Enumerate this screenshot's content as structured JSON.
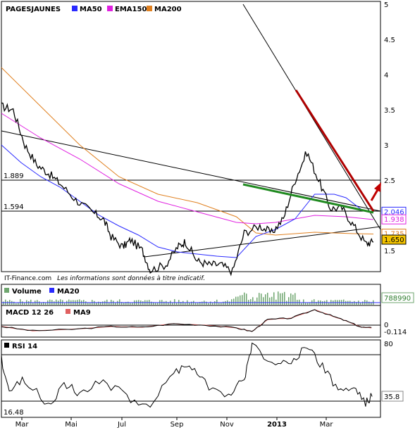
{
  "chart_data": [
    {
      "type": "line",
      "panel": "price",
      "title": "PAGESJAUNES",
      "legend": [
        "MA50",
        "EMA150",
        "MA200"
      ],
      "colors": {
        "price": "#000000",
        "ma50": "#2a2aff",
        "ema150": "#e020e0",
        "ma200": "#e08020",
        "resistance": "#b00000",
        "channel": "#208a20",
        "arrow": "#c00000"
      },
      "y_ticks": [
        5,
        4.5,
        4,
        3.5,
        3,
        2.5,
        2,
        1.5
      ],
      "ylim": [
        1.2,
        5
      ],
      "x_ticks": [
        "Mar",
        "Mai",
        "Jul",
        "Sep",
        "Nov",
        "2013",
        "Mar"
      ],
      "levels": [
        {
          "label": "1.889",
          "value": 1.889
        },
        {
          "label": "1.594",
          "value": 1.594
        }
      ],
      "value_tags": [
        {
          "label": "2.046",
          "value": 2.046,
          "color": "#2a2aff"
        },
        {
          "label": "1.938",
          "value": 1.938,
          "color": "#e020e0"
        },
        {
          "label": "1.735",
          "value": 1.735,
          "color": "#e08020"
        },
        {
          "label": "1.650",
          "value": 1.65,
          "color": "#000000",
          "fill": "#f4c400"
        }
      ],
      "price": [
        [
          0,
          3.55
        ],
        [
          0.03,
          3.5
        ],
        [
          0.06,
          3.0
        ],
        [
          0.09,
          2.72
        ],
        [
          0.12,
          2.6
        ],
        [
          0.15,
          2.45
        ],
        [
          0.19,
          2.22
        ],
        [
          0.23,
          2.05
        ],
        [
          0.26,
          1.95
        ],
        [
          0.28,
          1.7
        ],
        [
          0.31,
          1.55
        ],
        [
          0.33,
          1.65
        ],
        [
          0.36,
          1.5
        ],
        [
          0.38,
          1.22
        ],
        [
          0.42,
          1.3
        ],
        [
          0.45,
          1.55
        ],
        [
          0.47,
          1.63
        ],
        [
          0.5,
          1.35
        ],
        [
          0.53,
          1.3
        ],
        [
          0.56,
          1.3
        ],
        [
          0.59,
          1.2
        ],
        [
          0.62,
          1.75
        ],
        [
          0.66,
          1.85
        ],
        [
          0.69,
          1.75
        ],
        [
          0.72,
          1.95
        ],
        [
          0.75,
          2.5
        ],
        [
          0.78,
          2.9
        ],
        [
          0.81,
          2.5
        ],
        [
          0.84,
          2.1
        ],
        [
          0.87,
          2.1
        ],
        [
          0.9,
          1.85
        ],
        [
          0.93,
          1.6
        ],
        [
          0.95,
          1.62
        ]
      ],
      "ma50": [
        [
          0,
          3.0
        ],
        [
          0.05,
          2.75
        ],
        [
          0.1,
          2.55
        ],
        [
          0.15,
          2.4
        ],
        [
          0.2,
          2.2
        ],
        [
          0.25,
          2.0
        ],
        [
          0.3,
          1.85
        ],
        [
          0.35,
          1.72
        ],
        [
          0.4,
          1.55
        ],
        [
          0.45,
          1.48
        ],
        [
          0.5,
          1.45
        ],
        [
          0.55,
          1.42
        ],
        [
          0.6,
          1.4
        ],
        [
          0.65,
          1.7
        ],
        [
          0.7,
          1.8
        ],
        [
          0.75,
          1.95
        ],
        [
          0.8,
          2.3
        ],
        [
          0.85,
          2.3
        ],
        [
          0.88,
          2.25
        ],
        [
          0.92,
          2.08
        ],
        [
          0.95,
          2.05
        ]
      ],
      "ema150": [
        [
          0,
          3.45
        ],
        [
          0.1,
          3.1
        ],
        [
          0.2,
          2.8
        ],
        [
          0.3,
          2.45
        ],
        [
          0.4,
          2.2
        ],
        [
          0.5,
          2.05
        ],
        [
          0.6,
          1.9
        ],
        [
          0.65,
          1.88
        ],
        [
          0.7,
          1.9
        ],
        [
          0.8,
          2.0
        ],
        [
          0.88,
          1.98
        ],
        [
          0.95,
          1.94
        ]
      ],
      "ma200": [
        [
          0,
          4.1
        ],
        [
          0.1,
          3.55
        ],
        [
          0.2,
          3.0
        ],
        [
          0.3,
          2.55
        ],
        [
          0.4,
          2.3
        ],
        [
          0.5,
          2.18
        ],
        [
          0.6,
          1.98
        ],
        [
          0.65,
          1.75
        ],
        [
          0.7,
          1.72
        ],
        [
          0.8,
          1.76
        ],
        [
          0.9,
          1.74
        ],
        [
          0.95,
          1.735
        ]
      ],
      "volume": {
        "label": "Volume",
        "ma_label": "MA20",
        "last": "788990"
      },
      "macd": {
        "label": "MACD 12 26",
        "signal_label": "MA9",
        "ticks": [
          "0"
        ],
        "last": "-0.114"
      },
      "rsi": {
        "label": "RSI 14",
        "ticks": [
          "80",
          "16.48"
        ],
        "last": "35.8"
      }
    }
  ],
  "credit": {
    "site": "IT-Finance.com",
    "disclaimer": "Les informations sont données à titre indicatif."
  }
}
